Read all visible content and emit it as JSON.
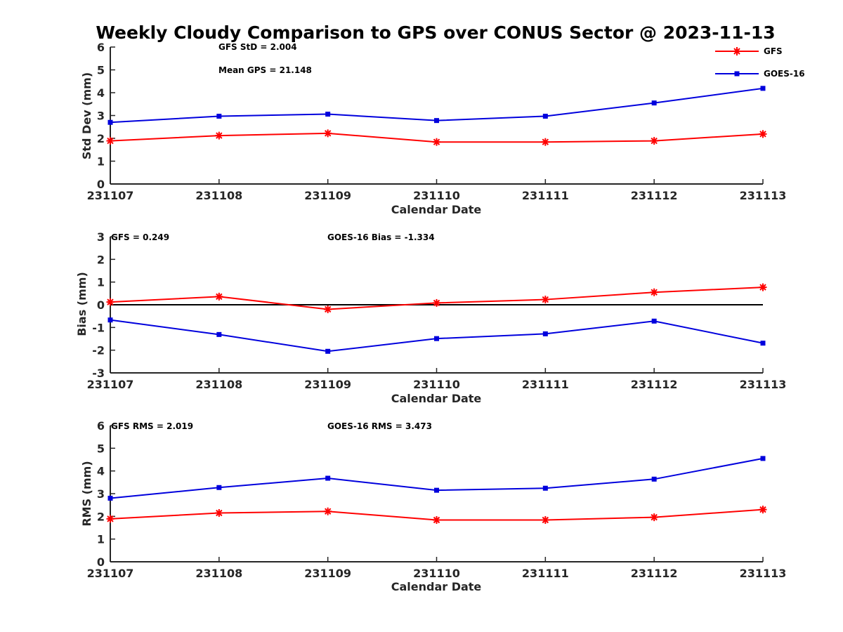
{
  "figure_title": "Weekly Cloudy Comparison to GPS over CONUS Sector @ 2023-11-13",
  "colors": {
    "GFS": "#ff0000",
    "GOES-16": "#0000dd",
    "axis": "#262626",
    "zero_line": "#000000"
  },
  "legend": [
    {
      "name": "GFS",
      "marker": "asterisk",
      "color": "#ff0000"
    },
    {
      "name": "GOES-16",
      "marker": "square",
      "color": "#0000dd"
    }
  ],
  "chart_data": [
    {
      "type": "line",
      "xlabel": "Calendar Date",
      "ylabel": "Std Dev (mm)",
      "categories": [
        "231107",
        "231108",
        "231109",
        "231110",
        "231111",
        "231112",
        "231113"
      ],
      "ylim": [
        0,
        6
      ],
      "yticks": [
        "0",
        "1",
        "2",
        "3",
        "4",
        "5",
        "6"
      ],
      "grid": false,
      "legend_position": "top-right",
      "series": [
        {
          "name": "GFS",
          "values": [
            1.89,
            2.12,
            2.22,
            1.84,
            1.84,
            1.89,
            2.19
          ]
        },
        {
          "name": "GOES-16",
          "values": [
            2.7,
            2.97,
            3.06,
            2.78,
            2.97,
            3.55,
            4.19
          ]
        }
      ],
      "annotations": [
        "GFS StD = 2.004",
        "Mean GPS = 21.148"
      ]
    },
    {
      "type": "line",
      "xlabel": "Calendar Date",
      "ylabel": "Bias (mm)",
      "categories": [
        "231107",
        "231108",
        "231109",
        "231110",
        "231111",
        "231112",
        "231113"
      ],
      "ylim": [
        -3,
        3
      ],
      "yticks": [
        "-3",
        "-2",
        "-1",
        "0",
        "1",
        "2",
        "3"
      ],
      "grid": false,
      "zero_line": true,
      "series": [
        {
          "name": "GFS",
          "values": [
            0.12,
            0.36,
            -0.2,
            0.08,
            0.23,
            0.55,
            0.77
          ]
        },
        {
          "name": "GOES-16",
          "values": [
            -0.67,
            -1.31,
            -2.05,
            -1.49,
            -1.28,
            -0.72,
            -1.69
          ]
        }
      ],
      "annotations": [
        "GFS = 0.249",
        "GOES-16 Bias  = -1.334"
      ]
    },
    {
      "type": "line",
      "xlabel": "Calendar Date",
      "ylabel": "RMS (mm)",
      "categories": [
        "231107",
        "231108",
        "231109",
        "231110",
        "231111",
        "231112",
        "231113"
      ],
      "ylim": [
        0,
        6
      ],
      "yticks": [
        "0",
        "1",
        "2",
        "3",
        "4",
        "5",
        "6"
      ],
      "grid": false,
      "series": [
        {
          "name": "GFS",
          "values": [
            1.89,
            2.15,
            2.22,
            1.84,
            1.84,
            1.96,
            2.3
          ]
        },
        {
          "name": "GOES-16",
          "values": [
            2.8,
            3.27,
            3.68,
            3.15,
            3.24,
            3.64,
            4.55
          ]
        }
      ],
      "annotations": [
        "GFS RMS = 2.019",
        "GOES-16 RMS = 3.473"
      ]
    }
  ]
}
